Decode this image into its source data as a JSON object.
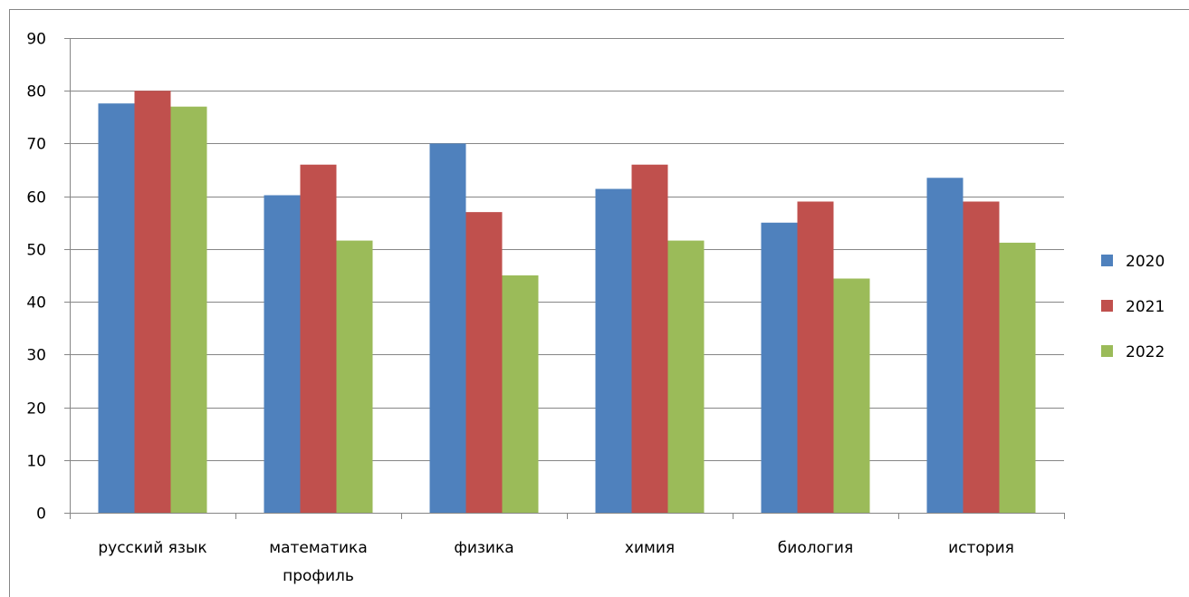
{
  "chart_data": {
    "type": "bar",
    "title": "",
    "xlabel": "",
    "ylabel": "",
    "categories": [
      "русский язык",
      "математика профиль",
      "физика",
      "химия",
      "биология",
      "история"
    ],
    "category_lines": [
      [
        "русский язык"
      ],
      [
        "математика",
        "профиль"
      ],
      [
        "физика"
      ],
      [
        "химия"
      ],
      [
        "биология"
      ],
      [
        "история"
      ]
    ],
    "series": [
      {
        "name": "2020",
        "color": "#4F81BD",
        "values": [
          77.6,
          60.2,
          70,
          61.4,
          55,
          63.5
        ]
      },
      {
        "name": "2021",
        "color": "#C0504D",
        "values": [
          80,
          66,
          57,
          66,
          59,
          59
        ]
      },
      {
        "name": "2022",
        "color": "#9BBB59",
        "values": [
          77,
          51.6,
          45,
          51.6,
          44.4,
          51.2
        ]
      }
    ],
    "ylim": [
      0,
      90
    ],
    "yticks": [
      0,
      10,
      20,
      30,
      40,
      50,
      60,
      70,
      80,
      90
    ],
    "grid": true,
    "legend_position": "right"
  }
}
